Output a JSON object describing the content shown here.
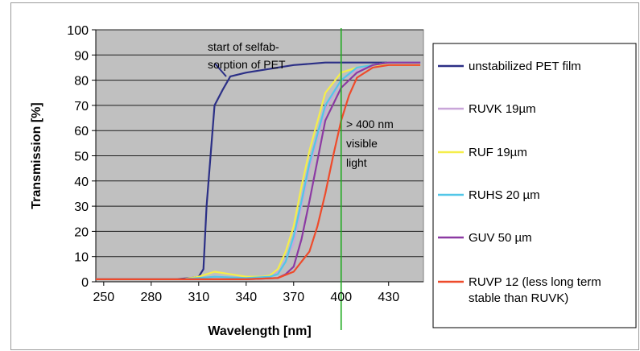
{
  "chart_data": {
    "type": "line",
    "title": "",
    "xlabel": "Wavelength [nm]",
    "ylabel": "Transmission [%]",
    "xlim": [
      245,
      452
    ],
    "ylim": [
      0,
      100
    ],
    "xticks": [
      250,
      280,
      310,
      340,
      370,
      400,
      430
    ],
    "yticks": [
      0,
      10,
      20,
      30,
      40,
      50,
      60,
      70,
      80,
      90,
      100
    ],
    "grid": true,
    "legend_position": "right",
    "plot_background": "#c0c0c0",
    "series": [
      {
        "name": "unstabilized PET film",
        "color": "#2b2f86",
        "x": [
          245,
          260,
          280,
          295,
          305,
          310,
          313,
          315,
          320,
          325,
          330,
          340,
          350,
          360,
          370,
          380,
          390,
          400,
          410,
          420,
          430,
          440,
          450
        ],
        "y": [
          1,
          1,
          1,
          1,
          1.5,
          2,
          5,
          30,
          70,
          76,
          81.5,
          83,
          84,
          85,
          86,
          86.5,
          87,
          87,
          87,
          87,
          87,
          87,
          87
        ]
      },
      {
        "name": "RUVK 19µm",
        "color": "#c9a6d9",
        "x": [
          245,
          260,
          280,
          300,
          320,
          340,
          355,
          362,
          370,
          375,
          380,
          390,
          400,
          410,
          420,
          430,
          440,
          450
        ],
        "y": [
          1,
          1,
          1,
          1,
          2,
          1.5,
          2,
          5,
          15,
          30,
          45,
          68,
          80,
          84,
          86,
          87,
          87,
          87
        ]
      },
      {
        "name": "RUF 19µm",
        "color": "#f5ee4a",
        "x": [
          245,
          260,
          280,
          300,
          310,
          320,
          330,
          340,
          350,
          355,
          360,
          365,
          370,
          375,
          380,
          390,
          400,
          410,
          420,
          430,
          440,
          450
        ],
        "y": [
          1,
          1,
          1,
          1,
          2,
          4,
          3,
          2,
          2,
          2.5,
          5,
          12,
          22,
          38,
          52,
          75,
          83,
          85,
          86,
          86,
          86,
          86
        ]
      },
      {
        "name": "RUHS 20 µm",
        "color": "#52c7e8",
        "x": [
          245,
          260,
          280,
          300,
          320,
          340,
          355,
          360,
          365,
          370,
          375,
          380,
          390,
          400,
          410,
          420,
          430,
          440,
          450
        ],
        "y": [
          1,
          1,
          1,
          1,
          2,
          1.5,
          2,
          3,
          8,
          18,
          32,
          47,
          70,
          80,
          85,
          86,
          87,
          87,
          87
        ]
      },
      {
        "name": "GUV 50 µm",
        "color": "#8c3aa3",
        "x": [
          245,
          260,
          280,
          300,
          320,
          340,
          360,
          365,
          370,
          375,
          380,
          390,
          400,
          410,
          420,
          430,
          440,
          450
        ],
        "y": [
          1,
          1,
          1,
          1,
          1,
          1,
          1.5,
          3,
          6,
          17,
          32,
          64,
          77,
          83,
          86,
          87,
          87,
          87
        ]
      },
      {
        "name": "RUVP 12 (less long term stable than RUVK)",
        "color": "#ee4b2b",
        "x": [
          245,
          260,
          280,
          300,
          320,
          340,
          360,
          370,
          380,
          385,
          390,
          395,
          400,
          405,
          410,
          420,
          430,
          440,
          450
        ],
        "y": [
          1,
          1,
          1,
          1,
          1,
          1,
          1.5,
          4,
          12,
          22,
          35,
          50,
          64,
          74,
          81,
          85,
          86,
          86,
          86
        ]
      }
    ],
    "vertical_marker": {
      "x": 400,
      "color": "#22aa22"
    },
    "annotations": [
      {
        "id": "selfabsorption",
        "lines": [
          "start of selfab-",
          "sorption of PET"
        ]
      },
      {
        "id": "visible",
        "lines": [
          "> 400 nm",
          "visible",
          "light"
        ]
      }
    ]
  }
}
